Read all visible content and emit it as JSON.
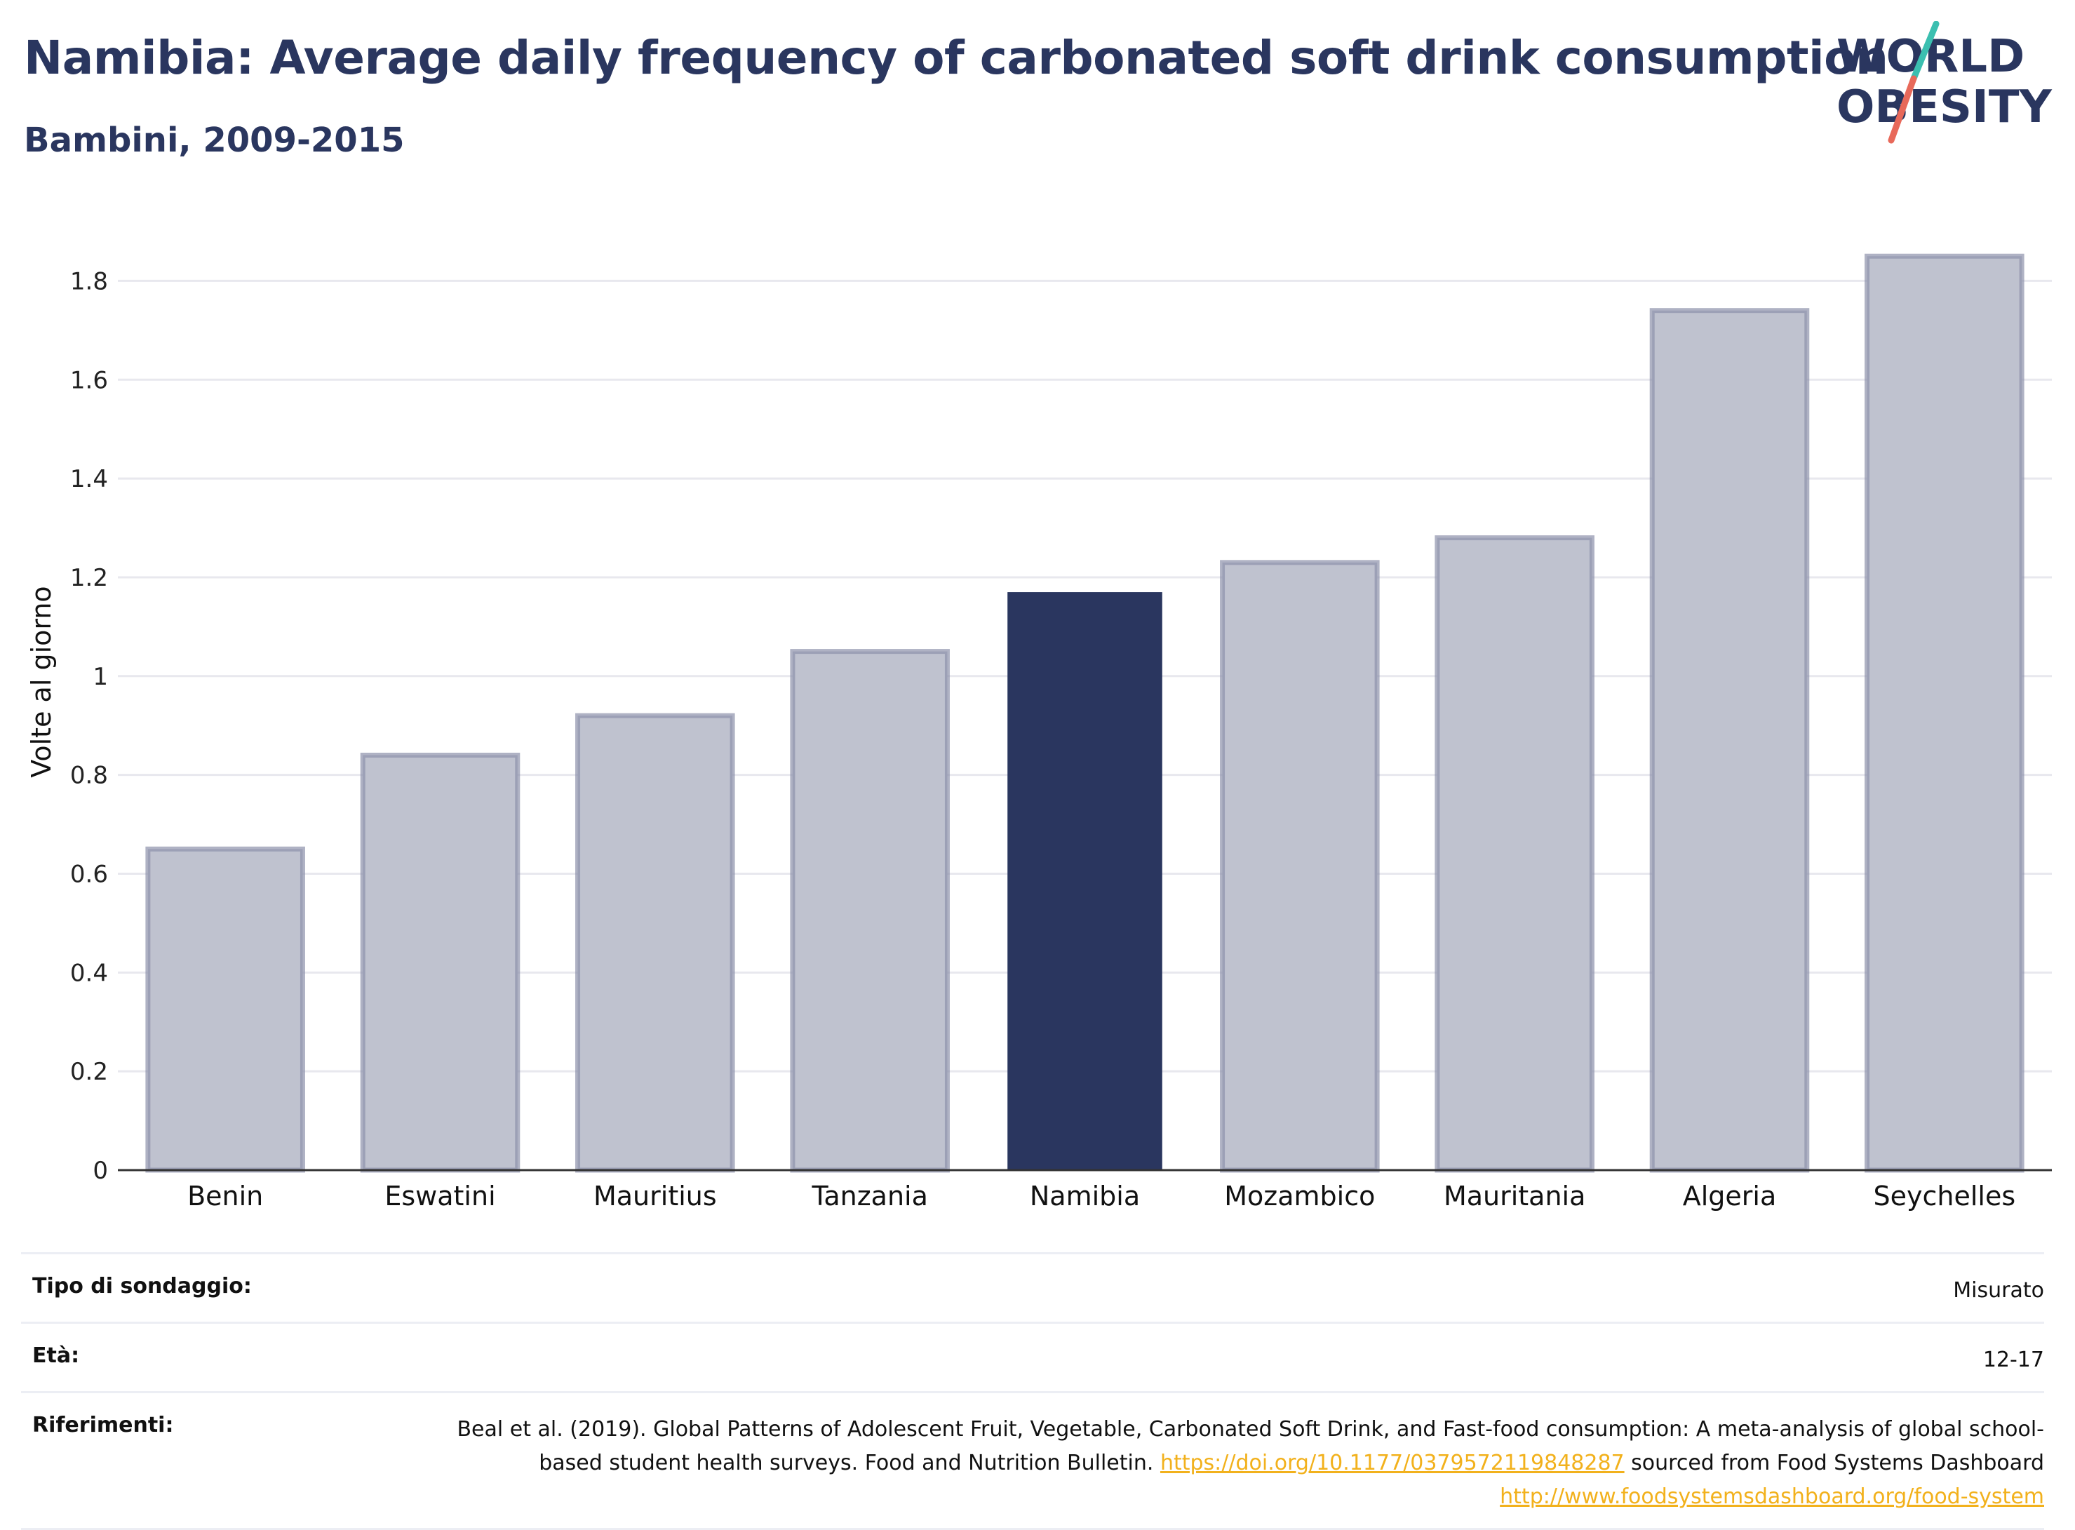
{
  "header": {
    "title": "Namibia: Average daily frequency of carbonated soft drink consumption",
    "subtitle": "Bambini, 2009-2015"
  },
  "logo": {
    "line1": "WORLD",
    "line2": "OBESITY"
  },
  "colors": {
    "highlight": "#2a365f",
    "bar_fill": "#bfc2cf",
    "bar_stroke": "#8d92ab",
    "grid": "#e8e8ee",
    "logo_teal": "#3bbfb0",
    "logo_coral": "#e8695a"
  },
  "chart_data": {
    "type": "bar",
    "categories": [
      "Benin",
      "Eswatini",
      "Mauritius",
      "Tanzania",
      "Namibia",
      "Mozambico",
      "Mauritania",
      "Algeria",
      "Seychelles"
    ],
    "values": [
      0.65,
      0.84,
      0.92,
      1.05,
      1.17,
      1.23,
      1.28,
      1.74,
      1.85
    ],
    "highlight": "Namibia",
    "ylabel": "Volte al giorno",
    "xlabel": "",
    "ylim": [
      0,
      1.9
    ],
    "yticks": [
      0,
      0.2,
      0.4,
      0.6,
      0.8,
      1,
      1.2,
      1.4,
      1.6,
      1.8
    ],
    "grid": true
  },
  "info": {
    "survey_type": {
      "label": "Tipo di sondaggio:",
      "value": "Misurato"
    },
    "age": {
      "label": "Età:",
      "value": "12-17"
    },
    "references": {
      "label": "Riferimenti:",
      "text1": "Beal et al. (2019). Global Patterns of Adolescent Fruit, Vegetable, Carbonated Soft Drink, and Fast-food consumption: A meta-analysis of global school-based student health surveys. Food and Nutrition Bulletin.",
      "link1": "https://doi.org/10.1177/0379572119848287",
      "text2": "sourced from Food Systems Dashboard",
      "link2": "http://www.foodsystemsdashboard.org/food-system"
    }
  }
}
